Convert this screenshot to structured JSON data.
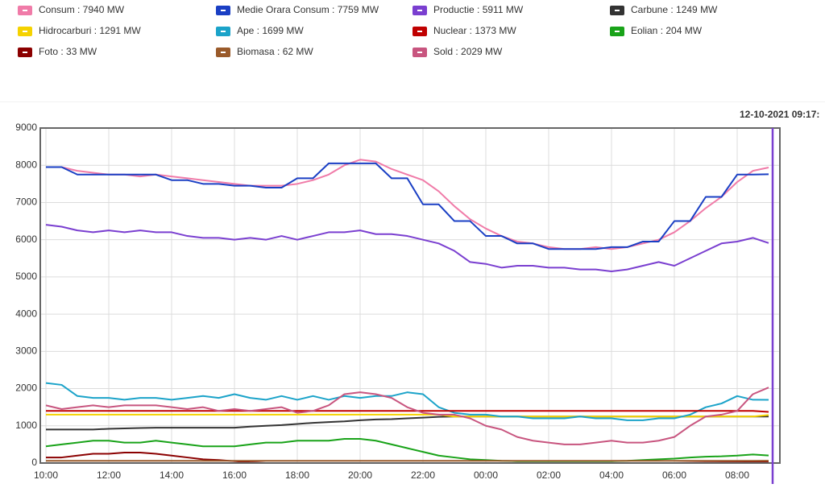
{
  "chart_data": {
    "type": "line",
    "annotation": "12-10-2021 09:17:",
    "categories": [
      "10:00",
      null,
      null,
      null,
      "12:00",
      null,
      null,
      null,
      "14:00",
      null,
      null,
      null,
      "16:00",
      null,
      null,
      null,
      "18:00",
      null,
      null,
      null,
      "20:00",
      null,
      null,
      null,
      "22:00",
      null,
      null,
      null,
      "00:00",
      null,
      null,
      null,
      "02:00",
      null,
      null,
      null,
      "04:00",
      null,
      null,
      null,
      "06:00",
      null,
      null,
      null,
      "08:00",
      null,
      null
    ],
    "ylim": [
      0,
      9000
    ],
    "yticks": [
      0,
      1000,
      2000,
      3000,
      4000,
      5000,
      6000,
      7000,
      8000,
      9000
    ],
    "grid": true,
    "series": [
      {
        "name": "Consum : 7940 MW",
        "color": "#f07ba8",
        "values": [
          7950,
          7950,
          7850,
          7800,
          7750,
          7750,
          7700,
          7750,
          7700,
          7650,
          7600,
          7550,
          7500,
          7450,
          7450,
          7450,
          7500,
          7600,
          7750,
          8000,
          8150,
          8100,
          7900,
          7750,
          7600,
          7300,
          6900,
          6550,
          6300,
          6100,
          5950,
          5900,
          5800,
          5750,
          5750,
          5800,
          5750,
          5800,
          5900,
          6000,
          6200,
          6500,
          6850,
          7150,
          7550,
          7850,
          7940
        ]
      },
      {
        "name": "Medie Orara Consum : 7759 MW",
        "color": "#1a3fc4",
        "values": [
          7950,
          7950,
          7750,
          7750,
          7750,
          7750,
          7750,
          7750,
          7600,
          7600,
          7500,
          7500,
          7450,
          7450,
          7400,
          7400,
          7650,
          7650,
          8050,
          8050,
          8050,
          8050,
          7650,
          7650,
          6950,
          6950,
          6500,
          6500,
          6100,
          6100,
          5900,
          5900,
          5750,
          5750,
          5750,
          5750,
          5800,
          5800,
          5950,
          5950,
          6500,
          6500,
          7150,
          7150,
          7750,
          7750,
          7759
        ]
      },
      {
        "name": "Productie : 5911 MW",
        "color": "#7a3fd0",
        "values": [
          6400,
          6350,
          6250,
          6200,
          6250,
          6200,
          6250,
          6200,
          6200,
          6100,
          6050,
          6050,
          6000,
          6050,
          6000,
          6100,
          6000,
          6100,
          6200,
          6200,
          6250,
          6150,
          6150,
          6100,
          6000,
          5900,
          5700,
          5400,
          5350,
          5250,
          5300,
          5300,
          5250,
          5250,
          5200,
          5200,
          5150,
          5200,
          5300,
          5400,
          5300,
          5500,
          5700,
          5900,
          5950,
          6050,
          5911
        ]
      },
      {
        "name": "Carbune : 1249 MW",
        "color": "#333333",
        "values": [
          900,
          900,
          900,
          900,
          920,
          930,
          940,
          950,
          950,
          950,
          950,
          950,
          950,
          980,
          1000,
          1020,
          1050,
          1080,
          1100,
          1120,
          1150,
          1170,
          1180,
          1200,
          1220,
          1240,
          1250,
          1250,
          1250,
          1250,
          1250,
          1250,
          1250,
          1250,
          1250,
          1250,
          1250,
          1250,
          1250,
          1250,
          1250,
          1250,
          1250,
          1250,
          1250,
          1250,
          1249
        ]
      },
      {
        "name": "Hidrocarburi : 1291 MW",
        "color": "#f5d200",
        "values": [
          1300,
          1300,
          1300,
          1300,
          1300,
          1300,
          1300,
          1300,
          1300,
          1300,
          1300,
          1300,
          1300,
          1300,
          1300,
          1300,
          1300,
          1300,
          1300,
          1300,
          1300,
          1300,
          1300,
          1300,
          1300,
          1300,
          1250,
          1250,
          1250,
          1250,
          1250,
          1250,
          1250,
          1250,
          1250,
          1250,
          1250,
          1250,
          1250,
          1250,
          1250,
          1250,
          1250,
          1250,
          1250,
          1250,
          1291
        ]
      },
      {
        "name": "Ape : 1699 MW",
        "color": "#1ba3c9",
        "values": [
          2150,
          2100,
          1800,
          1750,
          1750,
          1700,
          1750,
          1750,
          1700,
          1750,
          1800,
          1750,
          1850,
          1750,
          1700,
          1800,
          1700,
          1800,
          1700,
          1800,
          1750,
          1800,
          1800,
          1900,
          1850,
          1500,
          1350,
          1300,
          1300,
          1250,
          1250,
          1200,
          1200,
          1200,
          1250,
          1200,
          1200,
          1150,
          1150,
          1200,
          1200,
          1300,
          1500,
          1600,
          1800,
          1700,
          1699
        ]
      },
      {
        "name": "Nuclear : 1373 MW",
        "color": "#c00000",
        "values": [
          1400,
          1400,
          1400,
          1400,
          1400,
          1400,
          1400,
          1400,
          1400,
          1400,
          1400,
          1400,
          1400,
          1400,
          1400,
          1400,
          1400,
          1400,
          1400,
          1400,
          1400,
          1400,
          1400,
          1400,
          1400,
          1400,
          1400,
          1400,
          1400,
          1400,
          1400,
          1400,
          1400,
          1400,
          1400,
          1400,
          1400,
          1400,
          1400,
          1400,
          1400,
          1400,
          1400,
          1400,
          1400,
          1400,
          1373
        ]
      },
      {
        "name": "Eolian : 204 MW",
        "color": "#19a319",
        "values": [
          450,
          500,
          550,
          600,
          600,
          550,
          550,
          600,
          550,
          500,
          450,
          450,
          450,
          500,
          550,
          550,
          600,
          600,
          600,
          650,
          650,
          600,
          500,
          400,
          300,
          200,
          150,
          100,
          80,
          60,
          50,
          50,
          50,
          50,
          50,
          50,
          50,
          60,
          80,
          100,
          120,
          150,
          170,
          180,
          200,
          230,
          204
        ]
      },
      {
        "name": "Foto : 33 MW",
        "color": "#8b0000",
        "values": [
          150,
          150,
          200,
          250,
          250,
          280,
          280,
          250,
          200,
          150,
          100,
          80,
          50,
          20,
          0,
          0,
          0,
          0,
          0,
          0,
          0,
          0,
          0,
          0,
          0,
          0,
          0,
          0,
          0,
          0,
          0,
          0,
          0,
          0,
          0,
          0,
          0,
          0,
          0,
          0,
          0,
          5,
          10,
          15,
          20,
          25,
          33
        ]
      },
      {
        "name": "Biomasa : 62 MW",
        "color": "#9a5a2a",
        "values": [
          60,
          60,
          60,
          60,
          60,
          60,
          60,
          60,
          60,
          60,
          60,
          60,
          60,
          60,
          60,
          60,
          60,
          60,
          60,
          60,
          60,
          60,
          60,
          60,
          60,
          60,
          60,
          60,
          60,
          60,
          60,
          60,
          60,
          60,
          60,
          60,
          60,
          60,
          60,
          60,
          60,
          60,
          60,
          60,
          60,
          60,
          62
        ]
      },
      {
        "name": "Sold : 2029 MW",
        "color": "#c8557f",
        "values": [
          1550,
          1450,
          1500,
          1550,
          1500,
          1550,
          1550,
          1550,
          1500,
          1450,
          1500,
          1400,
          1450,
          1400,
          1450,
          1500,
          1350,
          1400,
          1550,
          1850,
          1900,
          1850,
          1750,
          1500,
          1350,
          1300,
          1300,
          1200,
          1000,
          900,
          700,
          600,
          550,
          500,
          500,
          550,
          600,
          550,
          550,
          600,
          700,
          1000,
          1250,
          1300,
          1400,
          1850,
          2029
        ]
      }
    ]
  }
}
